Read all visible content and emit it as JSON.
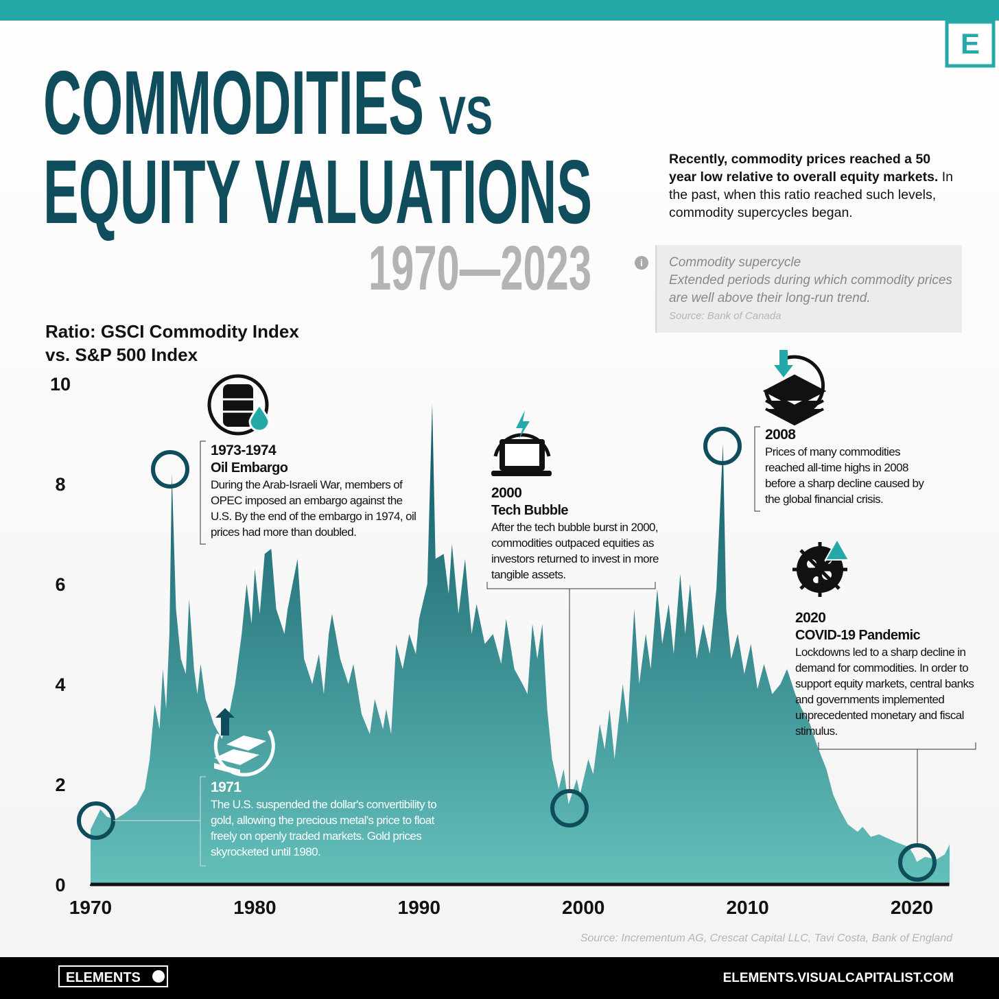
{
  "header": {
    "title_line1": "COMMODITIES",
    "title_vs": "VS",
    "title_line2": "EQUITY VALUATIONS",
    "years": "1970—2023",
    "logo": "E"
  },
  "intro": {
    "lead": "Recently, commodity prices reached a 50 year low relative to overall equity markets.",
    "body": "In the past, when this ratio reached such levels, commodity supercycles began."
  },
  "definition": {
    "term": "Commodity supercycle",
    "text": "Extended periods during which commodity prices are well above their long-run trend.",
    "source": "Source: Bank of Canada"
  },
  "chart_data": {
    "type": "area",
    "y_label_lines": [
      "Ratio: GSCI Commodity Index",
      "vs. S&P 500 Index"
    ],
    "x": [
      1970.0,
      1970.6,
      1971.0,
      1971.5,
      1972.0,
      1972.8,
      1973.3,
      1973.6,
      1973.9,
      1974.2,
      1974.4,
      1974.6,
      1974.8,
      1974.95,
      1975.2,
      1975.5,
      1975.8,
      1976.0,
      1976.3,
      1976.5,
      1976.7,
      1977.0,
      1977.5,
      1978.0,
      1978.5,
      1978.8,
      1979.2,
      1979.5,
      1979.8,
      1980.0,
      1980.3,
      1980.6,
      1981.0,
      1981.3,
      1981.8,
      1982.0,
      1982.6,
      1983.0,
      1983.5,
      1983.9,
      1984.2,
      1984.5,
      1984.7,
      1985.2,
      1985.7,
      1986.0,
      1986.5,
      1987.0,
      1987.3,
      1987.8,
      1988.0,
      1988.3,
      1988.6,
      1989.0,
      1989.4,
      1989.8,
      1990.0,
      1990.5,
      1990.8,
      1991.0,
      1991.5,
      1991.8,
      1992.0,
      1992.4,
      1992.8,
      1993.2,
      1993.5,
      1994.0,
      1994.5,
      1995.0,
      1995.3,
      1995.8,
      1996.3,
      1996.6,
      1996.9,
      1997.2,
      1997.5,
      1997.8,
      1998.1,
      1998.5,
      1998.8,
      1999.1,
      1999.6,
      1999.8,
      2000.3,
      2000.6,
      2001.0,
      2001.3,
      2001.6,
      2001.9,
      2002.4,
      2002.7,
      2003.1,
      2003.4,
      2003.8,
      2004.1,
      2004.5,
      2004.8,
      2005.2,
      2005.5,
      2005.9,
      2006.2,
      2006.5,
      2006.9,
      2007.3,
      2007.7,
      2008.1,
      2008.5,
      2008.7,
      2009.0,
      2009.4,
      2009.8,
      2010.2,
      2010.6,
      2011.0,
      2011.5,
      2012.0,
      2012.4,
      2012.9,
      2013.3,
      2013.8,
      2014.2,
      2014.8,
      2015.2,
      2015.6,
      2016.1,
      2016.7,
      2017.0,
      2017.5,
      2018.0,
      2019.0,
      2019.8,
      2020.1,
      2020.3,
      2020.8,
      2021.5,
      2022.0,
      2022.3
    ],
    "values": [
      1.1,
      1.5,
      1.35,
      1.3,
      1.4,
      1.6,
      1.9,
      2.5,
      3.6,
      3.1,
      4.3,
      3.5,
      5.0,
      8.2,
      5.5,
      4.5,
      4.2,
      5.7,
      4.3,
      3.8,
      4.4,
      3.7,
      3.2,
      2.9,
      3.5,
      4.0,
      5.0,
      6.0,
      5.2,
      6.3,
      5.4,
      6.6,
      6.7,
      5.5,
      5.0,
      5.5,
      6.5,
      4.5,
      4.0,
      4.6,
      3.8,
      5.0,
      5.4,
      4.5,
      4.0,
      4.4,
      3.4,
      3.0,
      3.7,
      3.1,
      3.5,
      3.0,
      4.8,
      4.3,
      5.0,
      4.6,
      5.3,
      6.0,
      9.6,
      6.5,
      6.6,
      5.8,
      6.8,
      5.4,
      6.5,
      5.0,
      5.6,
      4.8,
      5.0,
      4.4,
      5.3,
      4.3,
      4.0,
      3.8,
      5.2,
      4.5,
      5.2,
      3.5,
      2.5,
      1.9,
      2.3,
      1.6,
      2.1,
      1.8,
      2.5,
      2.2,
      3.2,
      2.7,
      3.5,
      2.5,
      4.0,
      3.2,
      5.5,
      4.0,
      5.0,
      4.3,
      5.9,
      4.8,
      5.6,
      4.6,
      6.2,
      5.0,
      6.0,
      4.5,
      5.2,
      4.6,
      5.9,
      8.8,
      5.5,
      4.5,
      5.0,
      4.2,
      4.8,
      3.9,
      4.4,
      3.8,
      4.0,
      4.3,
      3.8,
      3.5,
      3.2,
      2.8,
      2.3,
      1.8,
      1.5,
      1.2,
      1.05,
      1.15,
      0.95,
      1.0,
      0.85,
      0.75,
      0.6,
      0.45,
      0.55,
      0.5,
      0.6,
      0.8
    ],
    "xlim": [
      1970,
      2022.3
    ],
    "ylim": [
      0,
      10
    ],
    "xticks": [
      1970,
      1980,
      1990,
      2000,
      2010,
      2020
    ],
    "yticks": [
      0,
      2,
      4,
      6,
      8,
      10
    ],
    "color_top": "#0d5563",
    "color_bottom": "#64c0bb",
    "annotations": [
      {
        "date": "1973-1974",
        "title": "Oil Embargo",
        "text": "During the Arab-Israeli War, members of OPEC imposed an embargo against the U.S. By the end of the embargo in 1974, oil prices had more than doubled."
      },
      {
        "date": "2000",
        "title": "Tech Bubble",
        "text": "After the tech bubble burst in 2000, commodities outpaced equities as investors returned to invest in more tangible assets."
      },
      {
        "date": "2008",
        "text": "Prices of many commodities reached all-time highs in 2008 before a sharp decline caused by the global financial crisis."
      },
      {
        "date": "1971",
        "text": "The U.S. suspended the dollar's convertibility to gold, allowing the precious metal's price to float freely on openly traded markets. Gold prices skyrocketed until 1980."
      },
      {
        "date": "2020",
        "title": "COVID-19 Pandemic",
        "text": "Lockdowns led to a sharp decline in demand for commodities. In order to support equity markets, central banks and governments implemented unprecedented monetary and fiscal stimulus."
      }
    ]
  },
  "source": "Source: Incrementum AG, Crescat Capital LLC, Tavi Costa, Bank of England",
  "footer": {
    "brand": "ELEMENTS",
    "url": "ELEMENTS.VISUALCAPITALIST.COM"
  }
}
